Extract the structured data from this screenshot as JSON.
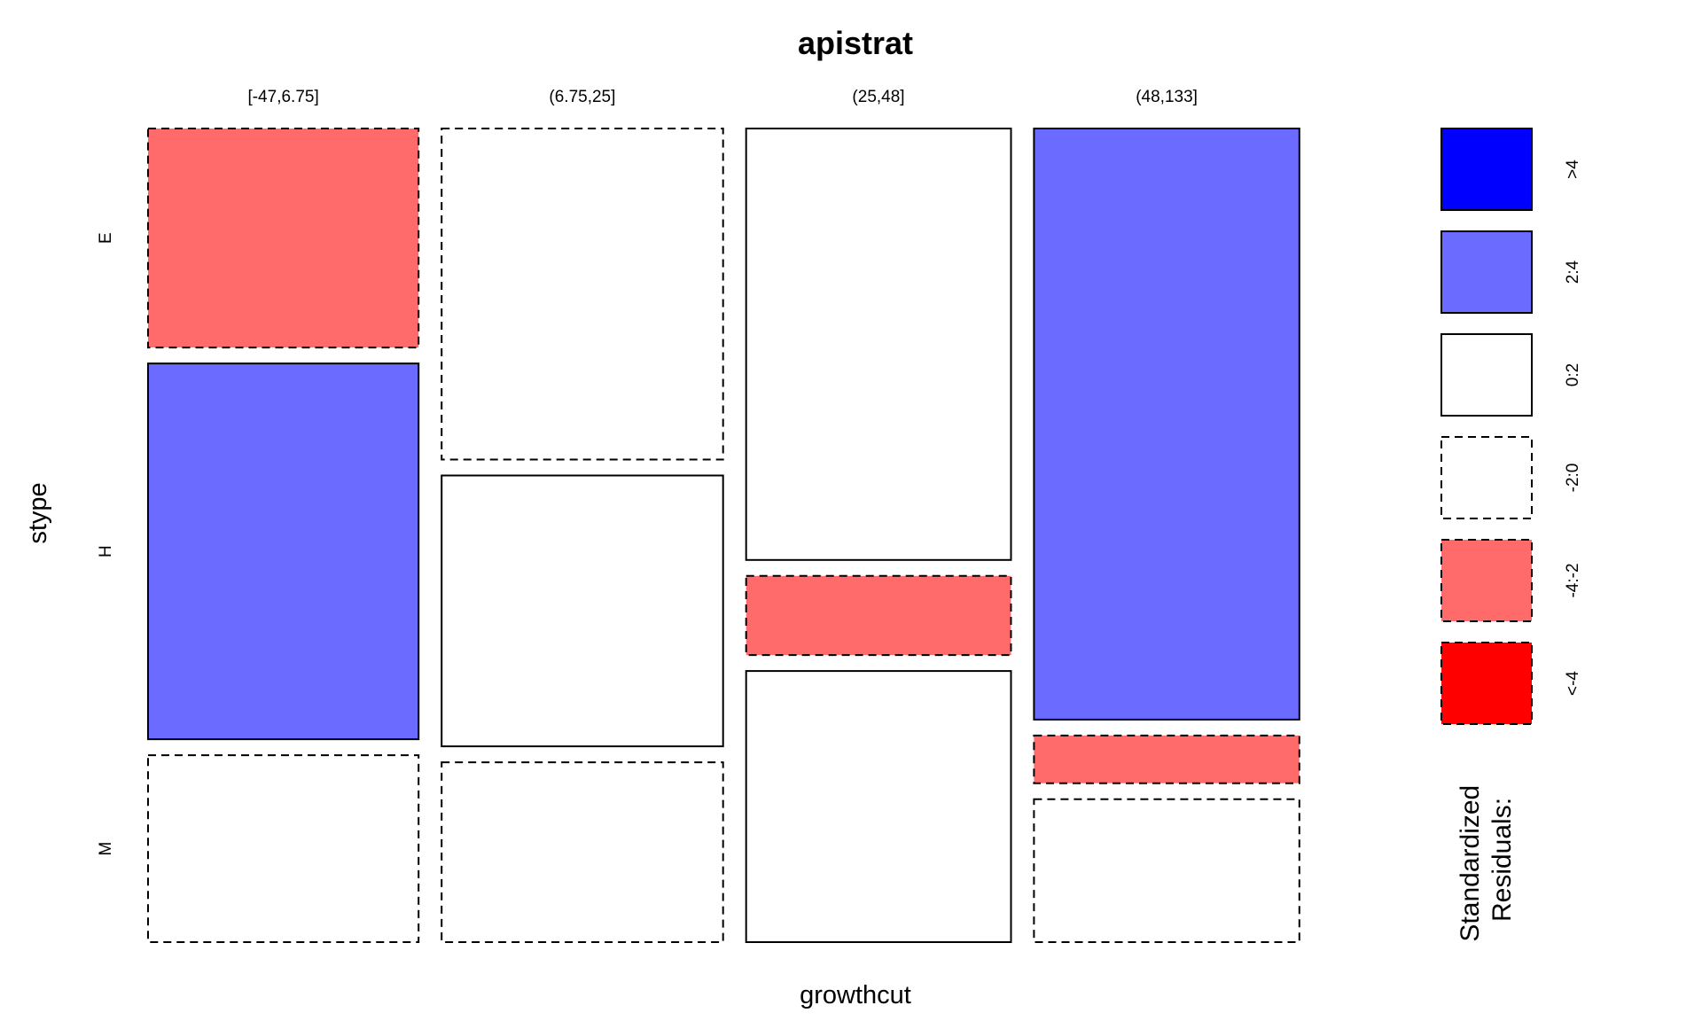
{
  "chart_data": {
    "type": "mosaic",
    "title": "apistrat",
    "xlabel": "growthcut",
    "ylabel": "stype",
    "columns": [
      {
        "label": "[-47,6.75]",
        "width": 0.2477,
        "cells": [
          {
            "row": "E",
            "proportion": 0.2734,
            "residual_class": "-4:-2"
          },
          {
            "row": "H",
            "proportion": 0.4691,
            "residual_class": "2:4"
          },
          {
            "row": "M",
            "proportion": 0.2333,
            "residual_class": "-2:0"
          }
        ]
      },
      {
        "label": "(6.75,25]",
        "width": 0.2577,
        "cells": [
          {
            "row": "E",
            "proportion": 0.4134,
            "residual_class": "-2:0"
          },
          {
            "row": "H",
            "proportion": 0.3382,
            "residual_class": "0:2"
          },
          {
            "row": "M",
            "proportion": 0.2246,
            "residual_class": "-2:0"
          }
        ]
      },
      {
        "label": "(25,48]",
        "width": 0.2425,
        "cells": [
          {
            "row": "E",
            "proportion": 0.5407,
            "residual_class": "0:2"
          },
          {
            "row": "H",
            "proportion": 0.0992,
            "residual_class": "-4:-2"
          },
          {
            "row": "M",
            "proportion": 0.3398,
            "residual_class": "0:2"
          }
        ]
      },
      {
        "label": "(48,133]",
        "width": 0.243,
        "cells": [
          {
            "row": "E",
            "proportion": 0.7407,
            "residual_class": "2:4"
          },
          {
            "row": "H",
            "proportion": 0.0598,
            "residual_class": "-4:-2"
          },
          {
            "row": "M",
            "proportion": 0.1791,
            "residual_class": "-2:0"
          }
        ]
      }
    ],
    "rows": [
      "E",
      "H",
      "M"
    ],
    "legend": {
      "title_lines": [
        "Standardized",
        "Residuals:"
      ],
      "position": "right",
      "items": [
        {
          "label": ">4",
          "fill": "#0000ff",
          "dashed": false
        },
        {
          "label": "2:4",
          "fill": "#6b6bff",
          "dashed": false
        },
        {
          "label": "0:2",
          "fill": "#ffffff",
          "dashed": false
        },
        {
          "label": "-2:0",
          "fill": "#ffffff",
          "dashed": true
        },
        {
          "label": "-4:-2",
          "fill": "#ff6b6b",
          "dashed": true
        },
        {
          "label": "<-4",
          "fill": "#ff0000",
          "dashed": true
        }
      ]
    }
  }
}
